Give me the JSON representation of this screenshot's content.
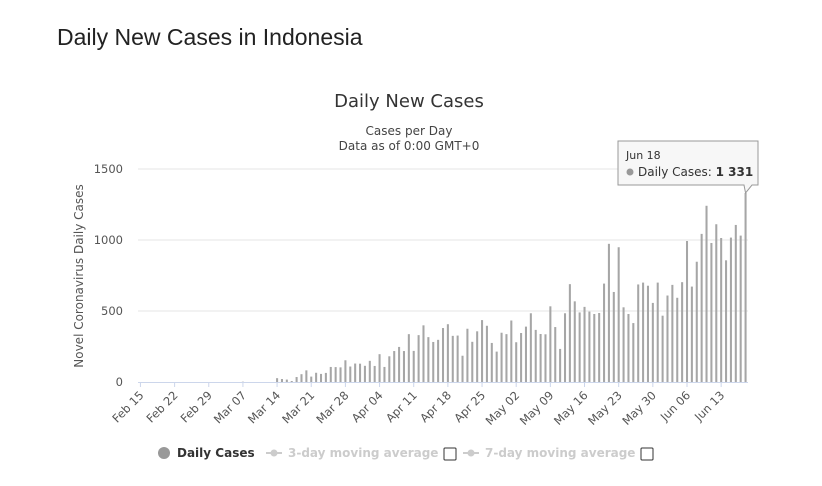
{
  "page": {
    "title": "Daily New Cases in Indonesia"
  },
  "colors": {
    "bar": "#a6a6a6",
    "grid": "#e6e6e6",
    "axis": "#ccd6eb",
    "legend_inactive": "#cccccc",
    "legend_active": "#333333",
    "marker": "#999999"
  },
  "chart_data": {
    "type": "bar",
    "title": "Daily New Cases",
    "subtitle_lines": [
      "Cases per Day",
      "Data as of 0:00 GMT+0"
    ],
    "ylabel": "Novel Coronavirus Daily Cases",
    "ylim": [
      0,
      1500
    ],
    "yticks": [
      "0",
      "500",
      "1000",
      "1500"
    ],
    "start_date": "Feb 15",
    "end_date": "Jun 18",
    "xtick_labels": [
      "Feb 15",
      "Feb 22",
      "Feb 29",
      "Mar 07",
      "Mar 14",
      "Mar 21",
      "Mar 28",
      "Apr 04",
      "Apr 11",
      "Apr 18",
      "Apr 25",
      "May 02",
      "May 09",
      "May 16",
      "May 23",
      "May 30",
      "Jun 06",
      "Jun 13"
    ],
    "series": [
      {
        "name": "Daily Cases",
        "values": [
          0,
          0,
          0,
          0,
          0,
          0,
          0,
          0,
          0,
          0,
          0,
          0,
          0,
          0,
          0,
          0,
          0,
          0,
          0,
          0,
          0,
          2,
          0,
          0,
          0,
          0,
          0,
          0,
          27,
          21,
          17,
          7,
          35,
          55,
          82,
          38,
          65,
          57,
          64,
          106,
          105,
          103,
          153,
          109,
          130,
          129,
          114,
          149,
          113,
          196,
          106,
          181,
          218,
          247,
          218,
          337,
          219,
          330,
          399,
          316,
          282,
          297,
          380,
          407,
          325,
          327,
          185,
          375,
          283,
          357,
          436,
          396,
          275,
          214,
          347,
          337,
          433,
          280,
          345,
          390,
          484,
          367,
          338,
          336,
          533,
          387,
          233,
          484,
          689,
          568,
          490,
          529,
          496,
          479,
          486,
          693,
          973,
          634,
          949,
          526,
          479,
          415,
          687,
          700,
          678,
          557,
          700,
          467,
          609,
          684,
          593,
          703,
          993,
          672,
          847,
          1043,
          1241,
          979,
          1111,
          1014,
          857,
          1017,
          1106,
          1031,
          1331
        ]
      }
    ],
    "legend": [
      {
        "name": "Daily Cases",
        "active": true,
        "checkbox": false
      },
      {
        "name": "3-day moving average",
        "active": false,
        "checkbox": true
      },
      {
        "name": "7-day moving average",
        "active": false,
        "checkbox": true
      }
    ],
    "tooltip": {
      "date": "Jun 18",
      "series": "Daily Cases",
      "value_text": "1 331"
    }
  }
}
